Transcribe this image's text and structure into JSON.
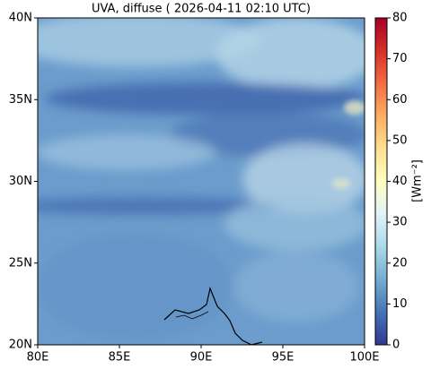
{
  "chart_data": {
    "type": "map",
    "title": "UVA, diffuse ( 2026-04-11 02:10 UTC)",
    "xlim": [
      80,
      100
    ],
    "xticks": [
      {
        "value": 80,
        "label": "80E"
      },
      {
        "value": 85,
        "label": "85E"
      },
      {
        "value": 90,
        "label": "90E"
      },
      {
        "value": 95,
        "label": "95E"
      },
      {
        "value": 100,
        "label": "100E"
      }
    ],
    "ylim": [
      20,
      40
    ],
    "yticks": [
      {
        "value": 20,
        "label": "20N"
      },
      {
        "value": 25,
        "label": "25N"
      },
      {
        "value": 30,
        "label": "30N"
      },
      {
        "value": 35,
        "label": "35N"
      },
      {
        "value": 40,
        "label": "40N"
      }
    ],
    "colorbar": {
      "label": "[Wm⁻²]",
      "lim": [
        0,
        80
      ],
      "ticks": [
        0,
        10,
        20,
        30,
        40,
        50,
        60,
        70,
        80
      ],
      "colors": [
        "#313695",
        "#4575b4",
        "#74add1",
        "#abd9e9",
        "#e0f3f8",
        "#ffffbf",
        "#fee090",
        "#fdae61",
        "#f46d43",
        "#d73027",
        "#a50026"
      ]
    }
  }
}
